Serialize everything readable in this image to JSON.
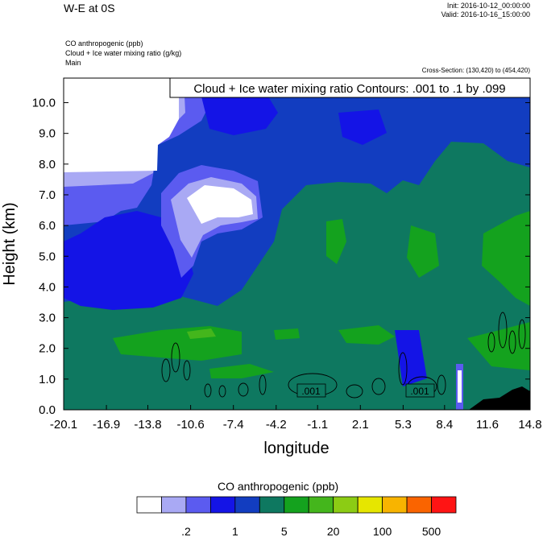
{
  "header": {
    "title": "W-E at 0S",
    "init": "Init: 2016-10-12_00:00:00",
    "valid": "Valid: 2016-10-16_15:00:00",
    "fields": [
      "CO anthropogenic   (ppb)",
      "Cloud + Ice water mixing ratio   (g/kg)",
      "Main"
    ],
    "cross_section": "Cross-Section: (130,420) to (454,420)"
  },
  "chart_data": {
    "type": "heatmap",
    "contour_label": "Cloud + Ice water mixing ratio Contours: .001 to .1 by .099",
    "xlabel": "longitude",
    "ylabel": "Height (km)",
    "xlim": [
      -20.1,
      14.8
    ],
    "ylim": [
      0.0,
      10.8
    ],
    "x_ticks": [
      "-20.1",
      "-16.9",
      "-13.8",
      "-10.6",
      "-7.4",
      "-4.2",
      "-1.1",
      "2.1",
      "5.3",
      "8.4",
      "11.6",
      "14.8"
    ],
    "y_ticks": [
      "0.0",
      "1.0",
      "2.0",
      "3.0",
      "4.0",
      "5.0",
      "6.0",
      "7.0",
      "8.0",
      "9.0",
      "10.0"
    ],
    "contour_box_labels": [
      ".001",
      ".001"
    ],
    "colorbar": {
      "title": "CO anthropogenic  (ppb)",
      "colors": [
        "#ffffff",
        "#a9a9f4",
        "#5b5bf0",
        "#1414e6",
        "#123dc0",
        "#0e7860",
        "#14a21e",
        "#44b61c",
        "#8ccc14",
        "#e6e600",
        "#f8b400",
        "#fa6400",
        "#ff1414"
      ],
      "tick_labels": [
        ".2",
        "1",
        "5",
        "20",
        "100",
        "500"
      ]
    }
  }
}
